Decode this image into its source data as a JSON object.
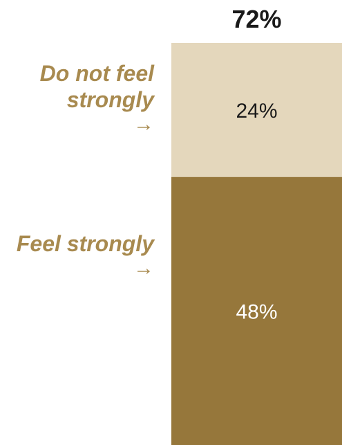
{
  "chart_data": {
    "type": "bar",
    "stacked": true,
    "total_label": "72%",
    "total": 72,
    "series": [
      {
        "name": "Feel strongly",
        "value": 48,
        "label": "48%",
        "color": "#96773b",
        "text_color": "#ffffff"
      },
      {
        "name": "Do not feel strongly",
        "value": 24,
        "label": "24%",
        "color": "#e4d7bc",
        "text_color": "#1a1a1a"
      }
    ]
  },
  "labels": {
    "do_not_feel_strongly": "Do not feel strongly",
    "feel_strongly": "Feel strongly",
    "arrow": "→"
  },
  "colors": {
    "label_text": "#a88a4f"
  }
}
